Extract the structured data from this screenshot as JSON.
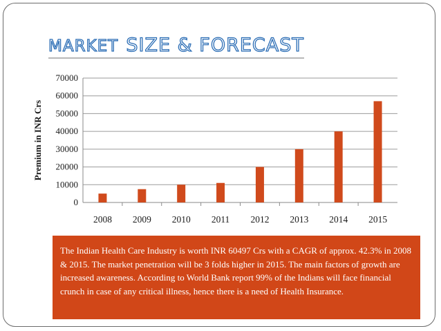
{
  "slide": {
    "title_part1": "MARKET",
    "title_part2": "SIZE & FORECAST",
    "note": "The Indian Health Care Industry is worth INR 60497 Crs with a CAGR of approx. 42.3% in 2008 & 2015. The market penetration will be 3 folds higher in 2015. The main factors of growth are increased awareness. According to World Bank report 99% of the Indians will face financial crunch in case of any critical illness, hence there is a need of Health Insurance."
  },
  "chart_data": {
    "type": "bar",
    "title": "",
    "xlabel": "",
    "ylabel": "Premium in INR Crs",
    "categories": [
      "2008",
      "2009",
      "2010",
      "2011",
      "2012",
      "2013",
      "2014",
      "2015"
    ],
    "values": [
      5000,
      7500,
      10000,
      11000,
      20000,
      30000,
      40000,
      57000
    ],
    "ylim": [
      0,
      70000
    ],
    "yticks": [
      "0",
      "10000",
      "20000",
      "30000",
      "40000",
      "50000",
      "60000",
      "70000"
    ],
    "grid": true,
    "legend": "none",
    "bar_color": "#d04a1c"
  }
}
